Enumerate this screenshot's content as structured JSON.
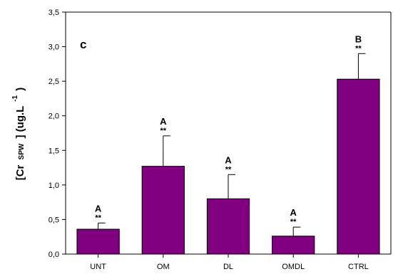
{
  "chart_data": {
    "type": "bar",
    "panel_label": "c",
    "categories": [
      "UNT",
      "OM",
      "DL",
      "OMDL",
      "CTRL"
    ],
    "values": [
      0.36,
      1.27,
      0.8,
      0.26,
      2.53
    ],
    "errors": [
      0.09,
      0.44,
      0.35,
      0.13,
      0.37
    ],
    "group_letters": [
      "A",
      "A",
      "A",
      "A",
      "B"
    ],
    "significance": [
      "**",
      "**",
      "**",
      "**",
      "**"
    ],
    "ylabel": {
      "prefix": "[Cr",
      "subscript": "SPW",
      "middle": "] (ug.L",
      "superscript": "-1",
      "suffix": ")"
    },
    "ylim": [
      0,
      3.5
    ],
    "yticks": [
      "0,0",
      "0,5",
      "1,0",
      "1,5",
      "2,0",
      "2,5",
      "3,0",
      "3,5"
    ],
    "bar_color": "#800080",
    "grid": false
  }
}
